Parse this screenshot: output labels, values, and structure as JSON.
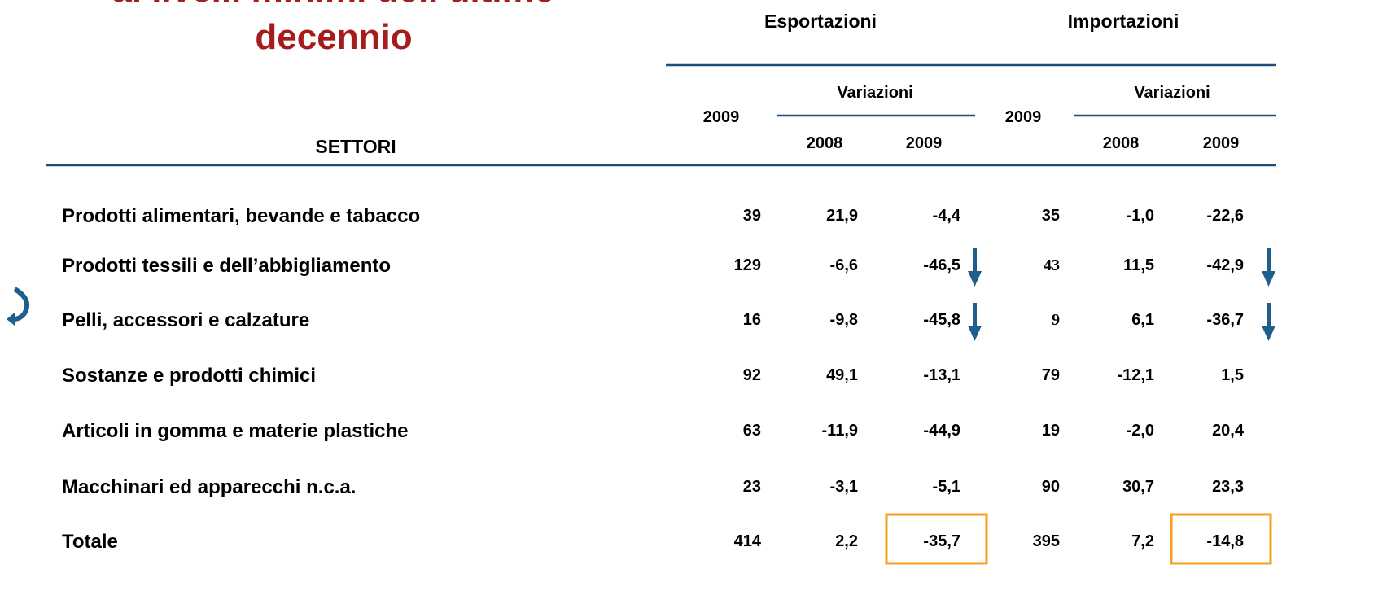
{
  "title": [
    "ai livelli minimi dell’ultimo",
    "decennio"
  ],
  "table": {
    "groups": [
      "Esportazioni",
      "Importazioni"
    ],
    "year": "2009",
    "variations": "Variazioni",
    "subyears": [
      "2008",
      "2009"
    ],
    "sector_header": "SETTORI",
    "rows": [
      [
        "Prodotti alimentari, bevande e tabacco",
        "39",
        "21,9",
        "-4,4",
        "35",
        "-1,0",
        "-22,6"
      ],
      [
        "Prodotti tessili e dell’abbigliamento",
        "129",
        "-6,6",
        "-46,5",
        "43",
        "11,5",
        "-42,9"
      ],
      [
        "Pelli, accessori e calzature",
        "16",
        "-9,8",
        "-45,8",
        "9",
        "6,1",
        "-36,7"
      ],
      [
        "Sostanze e prodotti chimici",
        "92",
        "49,1",
        "-13,1",
        "79",
        "-12,1",
        "1,5"
      ],
      [
        "Articoli in gomma e materie plastiche",
        "63",
        "-11,9",
        "-44,9",
        "19",
        "-2,0",
        "20,4"
      ],
      [
        "Macchinari ed apparecchi n.c.a.",
        "23",
        "-3,1",
        "-5,1",
        "90",
        "30,7",
        "23,3"
      ],
      [
        "Totale",
        "414",
        "2,2",
        "-35,7",
        "395",
        "7,2",
        "-14,8"
      ]
    ]
  }
}
